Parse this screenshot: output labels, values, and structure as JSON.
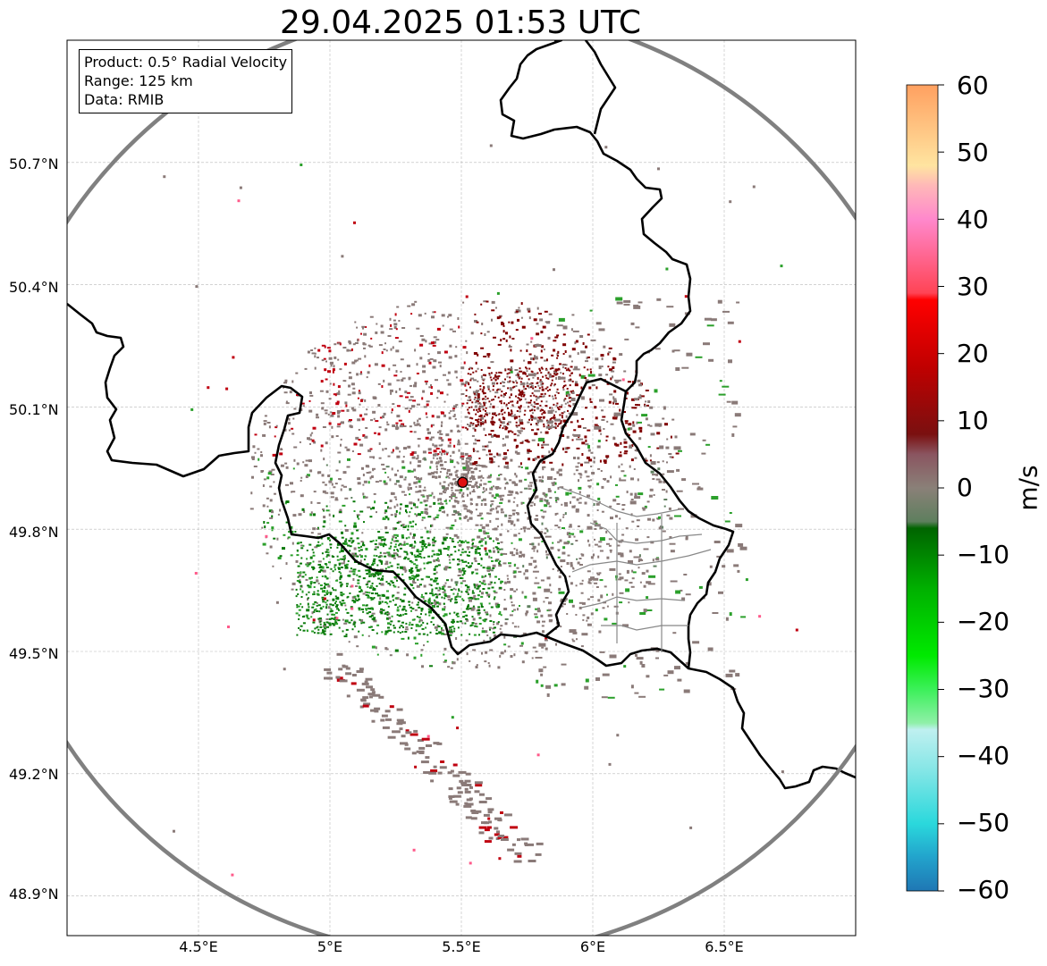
{
  "title": "29.04.2025 01:53 UTC",
  "info_box": {
    "product_label": "Product:",
    "product_value": "0.5° Radial Velocity",
    "range_label": "Range:",
    "range_value": "125 km",
    "data_label": "Data:",
    "data_value": "RMIB"
  },
  "axes": {
    "lat_ticks": [
      "50.7°N",
      "50.4°N",
      "50.1°N",
      "49.8°N",
      "49.5°N",
      "49.2°N",
      "48.9°N"
    ],
    "lon_ticks": [
      "4.5°E",
      "5°E",
      "5.5°E",
      "6°E",
      "6.5°E"
    ],
    "lat_values": [
      50.7,
      50.4,
      50.1,
      49.8,
      49.5,
      49.2,
      48.9
    ],
    "lon_values": [
      4.5,
      5.0,
      5.5,
      6.0,
      6.5
    ],
    "gridlines": true
  },
  "map": {
    "extent_lon": [
      4.0,
      7.0
    ],
    "extent_lat": [
      48.8,
      51.0
    ],
    "radar_site": {
      "lon": 5.505,
      "lat": 49.915
    },
    "range_km": 125,
    "range_ring_color": "#808080",
    "radar_marker_color": "#dd1111"
  },
  "colorbar": {
    "unit": "m/s",
    "min": -60,
    "max": 60,
    "tick_labels": [
      "60",
      "50",
      "40",
      "30",
      "20",
      "10",
      "0",
      "−10",
      "−20",
      "−30",
      "−40",
      "−50",
      "−60"
    ],
    "tick_values": [
      60,
      50,
      40,
      30,
      20,
      10,
      0,
      -10,
      -20,
      -30,
      -40,
      -50,
      -60
    ],
    "stops": [
      {
        "v": -60,
        "c": "#1f77b4"
      },
      {
        "v": -55,
        "c": "#22a3cc"
      },
      {
        "v": -50,
        "c": "#2ad8dc"
      },
      {
        "v": -42,
        "c": "#85e6e6"
      },
      {
        "v": -36,
        "c": "#bff0f0"
      },
      {
        "v": -35,
        "c": "#8ff0a8"
      },
      {
        "v": -30,
        "c": "#3cf05a"
      },
      {
        "v": -25,
        "c": "#00ea00"
      },
      {
        "v": -15,
        "c": "#00b000"
      },
      {
        "v": -6,
        "c": "#006400"
      },
      {
        "v": -5,
        "c": "#5e7f5e"
      },
      {
        "v": 0,
        "c": "#8a8078"
      },
      {
        "v": 5,
        "c": "#8a5560"
      },
      {
        "v": 8,
        "c": "#7a1010"
      },
      {
        "v": 18,
        "c": "#c00000"
      },
      {
        "v": 28,
        "c": "#ff0000"
      },
      {
        "v": 29,
        "c": "#ff4455"
      },
      {
        "v": 40,
        "c": "#ff88cc"
      },
      {
        "v": 45,
        "c": "#ffb8b8"
      },
      {
        "v": 48,
        "c": "#ffe4a0"
      },
      {
        "v": 60,
        "c": "#ffa060"
      }
    ]
  },
  "velocity_colors": {
    "near_zero": "#8a7a78",
    "approaching_light": "#2ba02b",
    "approaching_dark": "#0a7a0a",
    "receding_dark": "#800000",
    "receding": "#c00010",
    "zero_green": "#5e7f5e",
    "pink": "#ff5a8a"
  }
}
